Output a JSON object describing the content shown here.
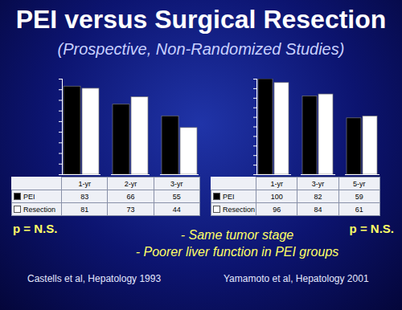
{
  "title": "PEI versus Surgical Resection",
  "subtitle": "(Prospective, Non-Randomized Studies)",
  "notes": [
    "- Same tumor stage",
    "- Poorer liver function in PEI groups"
  ],
  "chart_data": [
    {
      "type": "bar",
      "categories": [
        "1-yr",
        "2-yr",
        "3-yr"
      ],
      "series": [
        {
          "name": "PEI",
          "color": "#000000",
          "values": [
            83,
            66,
            55
          ]
        },
        {
          "name": "Resection",
          "color": "#ffffff",
          "values": [
            81,
            73,
            44
          ]
        }
      ],
      "ylim": [
        0,
        90
      ],
      "yticks": [
        0,
        10,
        20,
        30,
        40,
        50,
        60,
        70,
        80,
        90
      ],
      "tick_labels": false,
      "annotations": [
        "p = N.S."
      ],
      "caption": "Castells et al, Hepatology 1993"
    },
    {
      "type": "bar",
      "categories": [
        "1-yr",
        "3-yr",
        "5-yr"
      ],
      "series": [
        {
          "name": "PEI",
          "color": "#000000",
          "values": [
            100,
            82,
            59
          ]
        },
        {
          "name": "Resection",
          "color": "#ffffff",
          "values": [
            96,
            84,
            61
          ]
        }
      ],
      "ylim": [
        0,
        100
      ],
      "yticks": [
        0,
        10,
        20,
        30,
        40,
        50,
        60,
        70,
        80,
        90,
        100
      ],
      "tick_labels": false,
      "annotations": [
        "p = N.S."
      ],
      "caption": "Yamamoto et al, Hepatology 2001"
    }
  ]
}
